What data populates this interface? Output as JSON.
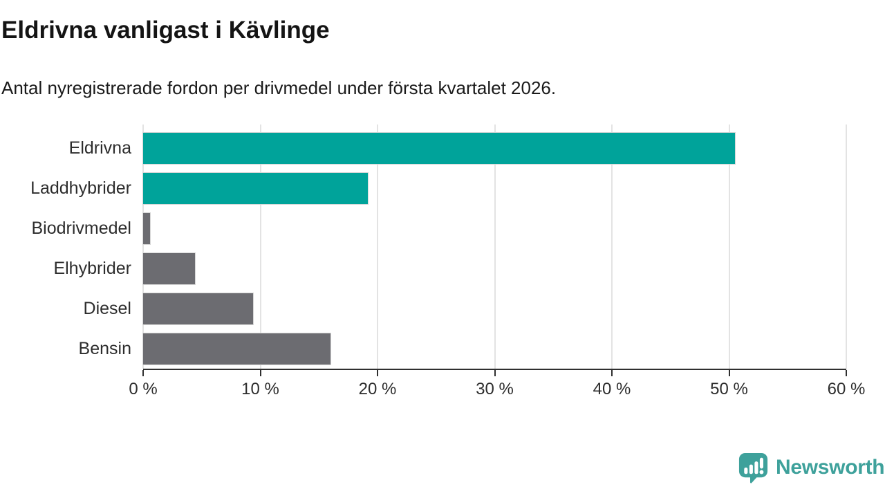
{
  "header": {
    "title": "Eldrivna vanligast i Kävlinge",
    "subtitle": "Antal nyregistrerade fordon per drivmedel under första kvartalet 2026."
  },
  "chart_data": {
    "type": "bar",
    "orientation": "horizontal",
    "title": "Eldrivna vanligast i Kävlinge",
    "subtitle": "Antal nyregistrerade fordon per drivmedel under första kvartalet 2026.",
    "categories": [
      "Eldrivna",
      "Laddhybrider",
      "Biodrivmedel",
      "Elhybrider",
      "Diesel",
      "Bensin"
    ],
    "values": [
      50.5,
      19.2,
      0.6,
      4.4,
      9.4,
      16.0
    ],
    "unit": "%",
    "xlim": [
      0,
      60
    ],
    "x_ticks": [
      "0 %",
      "10 %",
      "20 %",
      "30 %",
      "40 %",
      "50 %",
      "60 %"
    ],
    "grid": true,
    "legend": false,
    "colors": {
      "highlight": "#00a39a",
      "default": "#6c6c71",
      "gridline": "#e3e3e3",
      "axis": "#2f2f2f"
    },
    "bar_colors": [
      "#00a39a",
      "#00a39a",
      "#6c6c71",
      "#6c6c71",
      "#6c6c71",
      "#6c6c71"
    ]
  },
  "footer": {
    "brand": "Newsworthy",
    "brand_color": "#3ea19b",
    "logo_icon": "newsworthy-bar-chart-speech-bubble-icon"
  }
}
